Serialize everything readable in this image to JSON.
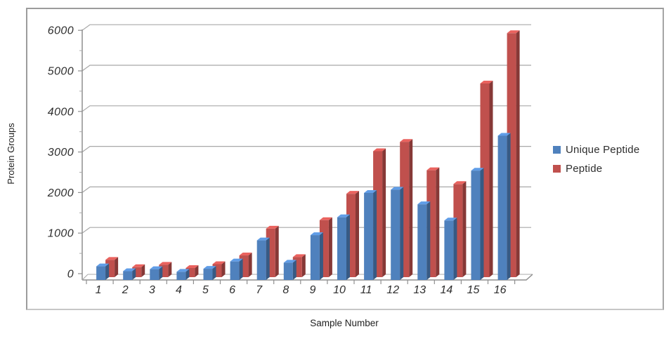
{
  "figure": {
    "y_axis_title": "Protein Groups",
    "x_axis_title": "Sample Number"
  },
  "chart_data": {
    "type": "bar",
    "style": "3d-clustered-column",
    "title": "",
    "xlabel": "Sample Number",
    "ylabel": "Protein Groups",
    "categories": [
      "1",
      "2",
      "3",
      "4",
      "5",
      "6",
      "7",
      "8",
      "9",
      "10",
      "11",
      "12",
      "13",
      "14",
      "15",
      "16"
    ],
    "series": [
      {
        "name": "Unique Peptide",
        "color": "#4f81bd",
        "values": [
          180,
          60,
          110,
          45,
          120,
          300,
          820,
          270,
          950,
          1390,
          1990,
          2070,
          1710,
          1310,
          2540,
          3400
        ]
      },
      {
        "name": "Peptide",
        "color": "#c0504d",
        "values": [
          270,
          90,
          150,
          70,
          165,
          380,
          1040,
          340,
          1250,
          1900,
          2950,
          3180,
          2480,
          2140,
          4620,
          5860
        ]
      }
    ],
    "ylim": [
      0,
      6000
    ],
    "yticks": [
      0,
      1000,
      2000,
      3000,
      4000,
      5000,
      6000
    ],
    "grid": true,
    "legend_position": "right",
    "axis_color": "#8f8f8f",
    "gridline_color": "#a8a8a8"
  }
}
